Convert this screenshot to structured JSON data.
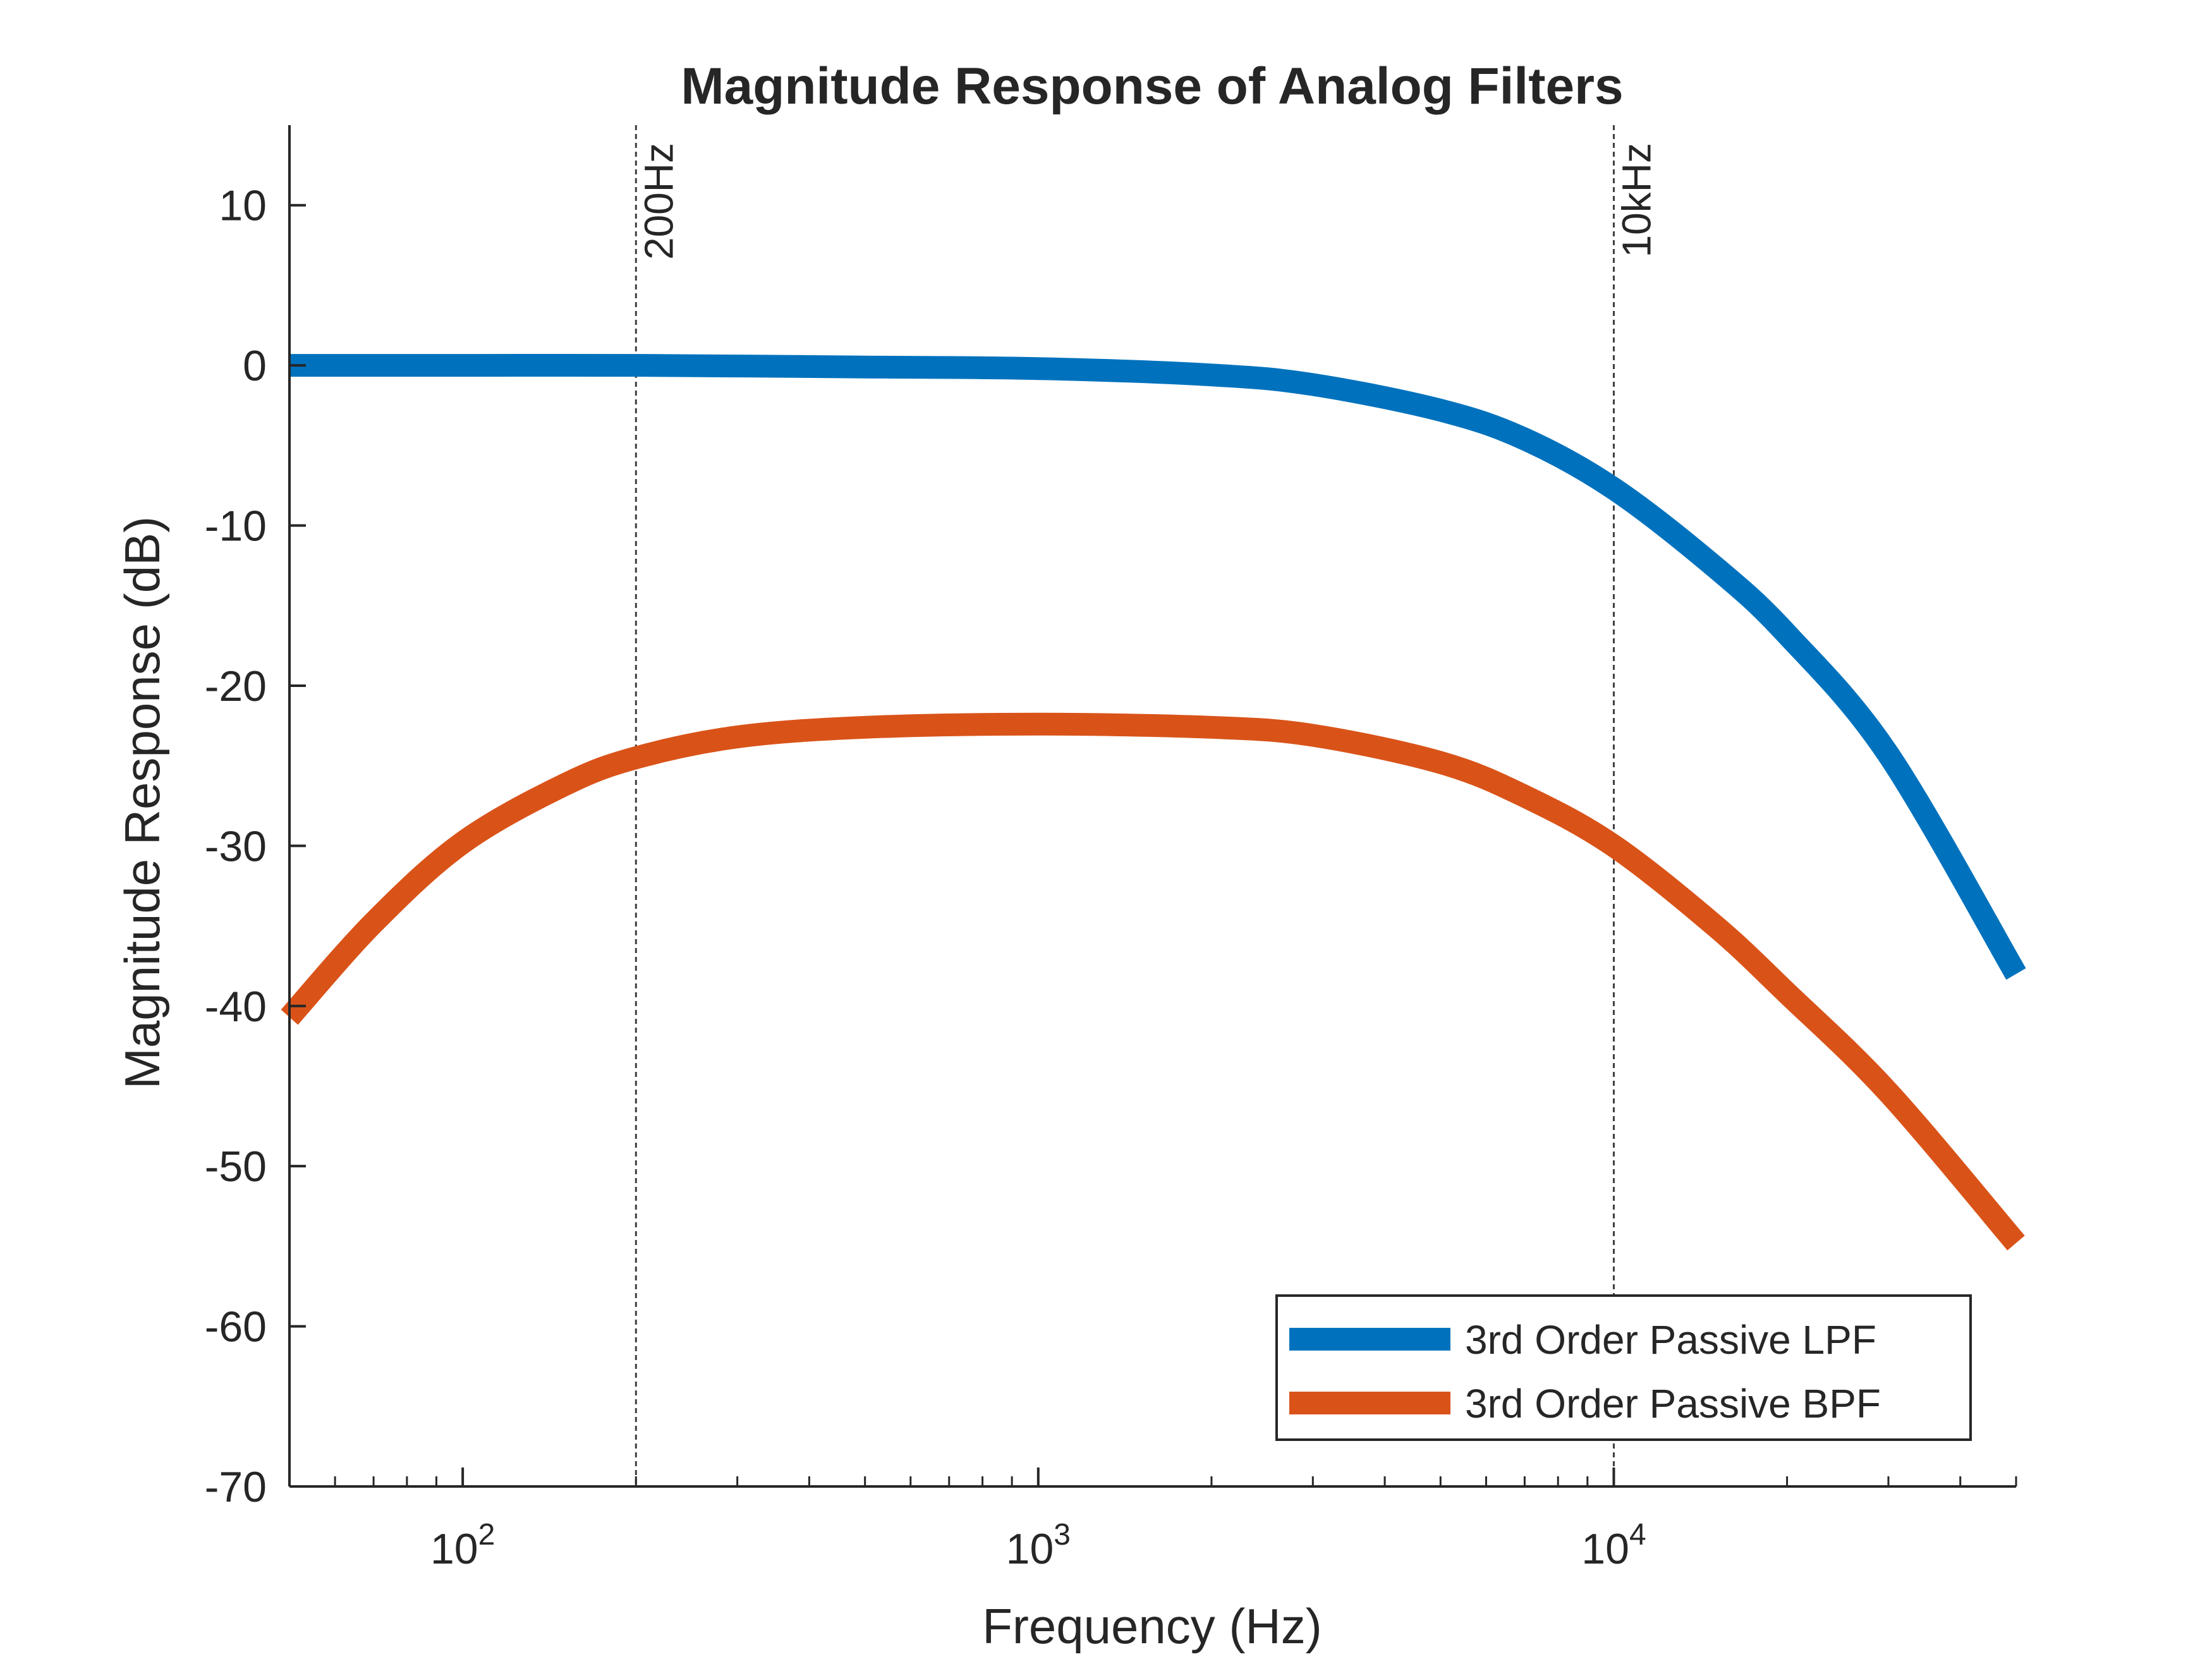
{
  "chart_data": {
    "type": "line",
    "title": "Magnitude Response of Analog Filters",
    "xlabel": "Frequency (Hz)",
    "ylabel": "Magnitude Response (dB)",
    "xscale": "log",
    "xlim": [
      50,
      50000
    ],
    "ylim": [
      -70,
      15
    ],
    "xticks": [
      {
        "value": 100,
        "base": "10",
        "exp": "2"
      },
      {
        "value": 1000,
        "base": "10",
        "exp": "3"
      },
      {
        "value": 10000,
        "base": "10",
        "exp": "4"
      }
    ],
    "yticks": [
      10,
      0,
      -10,
      -20,
      -30,
      -40,
      -50,
      -60,
      -70
    ],
    "grid": false,
    "legend_position": "bottom-right",
    "reference_lines": [
      {
        "x": 200,
        "label": "200Hz"
      },
      {
        "x": 10000,
        "label": "10kHz"
      }
    ],
    "series": [
      {
        "name": "3rd Order Passive LPF",
        "color": "#0072BD",
        "x": [
          50,
          100,
          200,
          500,
          1000,
          2000,
          3000,
          5000,
          7000,
          10000,
          15000,
          20000,
          30000,
          50000
        ],
        "y": [
          0,
          0,
          0,
          -0.1,
          -0.2,
          -0.6,
          -1.2,
          -2.8,
          -4.6,
          -7.7,
          -12.6,
          -16.8,
          -24.3,
          -38
        ]
      },
      {
        "name": "3rd Order Passive BPF",
        "color": "#D95319",
        "x": [
          50,
          70,
          100,
          150,
          200,
          300,
          500,
          1000,
          2000,
          3000,
          5000,
          7000,
          10000,
          15000,
          20000,
          30000,
          50000
        ],
        "y": [
          -40.7,
          -34.8,
          -29.8,
          -26.2,
          -24.5,
          -23.2,
          -22.6,
          -22.4,
          -22.6,
          -23.1,
          -24.8,
          -26.9,
          -30,
          -35,
          -39.2,
          -45.4,
          -54.8
        ]
      }
    ]
  }
}
